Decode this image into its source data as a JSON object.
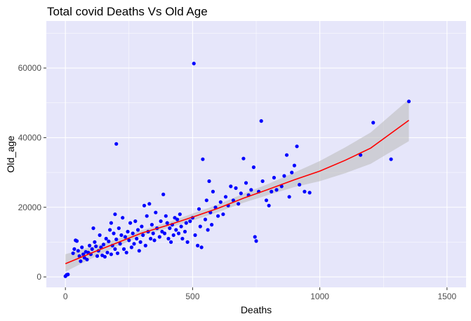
{
  "chart_data": {
    "type": "scatter",
    "title": "Total covid Deaths Vs Old Age",
    "xlabel": "Deaths",
    "ylabel": "Old_age",
    "xlim": [
      -75,
      1575
    ],
    "ylim": [
      -3000,
      73500
    ],
    "x_ticks": [
      0,
      500,
      1000,
      1500
    ],
    "x_tick_labels": [
      "0",
      "500",
      "1000",
      "1500"
    ],
    "y_ticks": [
      0,
      20000,
      40000,
      60000
    ],
    "y_tick_labels": [
      "0",
      "20000",
      "40000",
      "60000"
    ],
    "grid": true,
    "legend": "none",
    "colors": {
      "panel": "#e6e6fa",
      "grid": "#ffffff",
      "points": "#0000ff",
      "fit": "#ff0000",
      "ribbon": "#bebebe"
    },
    "points": [
      [
        0,
        200
      ],
      [
        5,
        600
      ],
      [
        10,
        700
      ],
      [
        30,
        6800
      ],
      [
        35,
        8000
      ],
      [
        40,
        10500
      ],
      [
        45,
        10300
      ],
      [
        50,
        7500
      ],
      [
        55,
        6000
      ],
      [
        60,
        4500
      ],
      [
        65,
        8500
      ],
      [
        70,
        6500
      ],
      [
        75,
        5500
      ],
      [
        80,
        7200
      ],
      [
        85,
        5000
      ],
      [
        90,
        7000
      ],
      [
        95,
        9000
      ],
      [
        100,
        6500
      ],
      [
        105,
        8000
      ],
      [
        110,
        14000
      ],
      [
        115,
        10000
      ],
      [
        120,
        8800
      ],
      [
        125,
        6000
      ],
      [
        130,
        7500
      ],
      [
        135,
        12000
      ],
      [
        140,
        8500
      ],
      [
        145,
        6200
      ],
      [
        150,
        9300
      ],
      [
        155,
        5800
      ],
      [
        160,
        11000
      ],
      [
        165,
        7000
      ],
      [
        170,
        10200
      ],
      [
        175,
        13500
      ],
      [
        180,
        6500
      ],
      [
        180,
        15500
      ],
      [
        185,
        9000
      ],
      [
        190,
        12500
      ],
      [
        195,
        8000
      ],
      [
        195,
        18000
      ],
      [
        200,
        10800
      ],
      [
        200,
        38200
      ],
      [
        205,
        6800
      ],
      [
        210,
        14000
      ],
      [
        215,
        9500
      ],
      [
        220,
        12000
      ],
      [
        225,
        17000
      ],
      [
        230,
        8000
      ],
      [
        235,
        11500
      ],
      [
        240,
        7000
      ],
      [
        245,
        13000
      ],
      [
        250,
        10500
      ],
      [
        255,
        15500
      ],
      [
        260,
        8500
      ],
      [
        265,
        12500
      ],
      [
        270,
        9500
      ],
      [
        275,
        16000
      ],
      [
        280,
        11000
      ],
      [
        285,
        13500
      ],
      [
        290,
        7500
      ],
      [
        295,
        10000
      ],
      [
        300,
        14500
      ],
      [
        305,
        12000
      ],
      [
        310,
        20500
      ],
      [
        315,
        9000
      ],
      [
        320,
        17500
      ],
      [
        325,
        13000
      ],
      [
        330,
        21000
      ],
      [
        335,
        11000
      ],
      [
        340,
        15000
      ],
      [
        345,
        12500
      ],
      [
        350,
        10500
      ],
      [
        355,
        18500
      ],
      [
        360,
        14000
      ],
      [
        370,
        11500
      ],
      [
        375,
        16000
      ],
      [
        380,
        13000
      ],
      [
        385,
        23700
      ],
      [
        390,
        12500
      ],
      [
        395,
        17500
      ],
      [
        400,
        15500
      ],
      [
        405,
        11000
      ],
      [
        410,
        14000
      ],
      [
        415,
        10000
      ],
      [
        420,
        15000
      ],
      [
        425,
        12000
      ],
      [
        430,
        17000
      ],
      [
        435,
        13500
      ],
      [
        440,
        16500
      ],
      [
        445,
        12500
      ],
      [
        450,
        18000
      ],
      [
        455,
        14500
      ],
      [
        460,
        11000
      ],
      [
        470,
        13000
      ],
      [
        475,
        15500
      ],
      [
        480,
        10000
      ],
      [
        490,
        16000
      ],
      [
        500,
        17000
      ],
      [
        505,
        61300
      ],
      [
        510,
        12000
      ],
      [
        520,
        9000
      ],
      [
        525,
        19500
      ],
      [
        530,
        14500
      ],
      [
        535,
        8500
      ],
      [
        540,
        33800
      ],
      [
        550,
        16500
      ],
      [
        555,
        22000
      ],
      [
        560,
        13500
      ],
      [
        565,
        27500
      ],
      [
        570,
        18500
      ],
      [
        575,
        15000
      ],
      [
        580,
        24500
      ],
      [
        590,
        20000
      ],
      [
        600,
        17500
      ],
      [
        610,
        21500
      ],
      [
        620,
        18000
      ],
      [
        630,
        23000
      ],
      [
        640,
        20500
      ],
      [
        650,
        26000
      ],
      [
        660,
        22000
      ],
      [
        670,
        25500
      ],
      [
        680,
        21000
      ],
      [
        690,
        24000
      ],
      [
        700,
        34000
      ],
      [
        710,
        27000
      ],
      [
        720,
        23500
      ],
      [
        730,
        25000
      ],
      [
        740,
        31500
      ],
      [
        745,
        11500
      ],
      [
        750,
        10300
      ],
      [
        760,
        24500
      ],
      [
        770,
        44800
      ],
      [
        775,
        27500
      ],
      [
        790,
        22000
      ],
      [
        800,
        20500
      ],
      [
        810,
        24500
      ],
      [
        820,
        28500
      ],
      [
        830,
        25000
      ],
      [
        850,
        26000
      ],
      [
        860,
        29000
      ],
      [
        870,
        35000
      ],
      [
        880,
        23000
      ],
      [
        890,
        30000
      ],
      [
        900,
        32000
      ],
      [
        910,
        37500
      ],
      [
        920,
        26500
      ],
      [
        940,
        24500
      ],
      [
        960,
        24200
      ],
      [
        1160,
        35000
      ],
      [
        1210,
        44300
      ],
      [
        1280,
        33800
      ],
      [
        1350,
        50400
      ]
    ],
    "fit": {
      "x": [
        0,
        100,
        200,
        300,
        400,
        500,
        600,
        700,
        800,
        900,
        1000,
        1100,
        1200,
        1350
      ],
      "y": [
        3800,
        6800,
        9700,
        12600,
        14800,
        17200,
        19700,
        22600,
        25200,
        27900,
        30400,
        33500,
        37000,
        45000
      ],
      "lower": [
        1500,
        5200,
        8700,
        11800,
        14000,
        16200,
        18600,
        21300,
        23600,
        25800,
        27500,
        29800,
        32500,
        39000
      ],
      "upper": [
        6500,
        8600,
        10800,
        13400,
        15600,
        18200,
        20800,
        23900,
        26800,
        30000,
        33300,
        37200,
        41500,
        51000
      ]
    }
  }
}
